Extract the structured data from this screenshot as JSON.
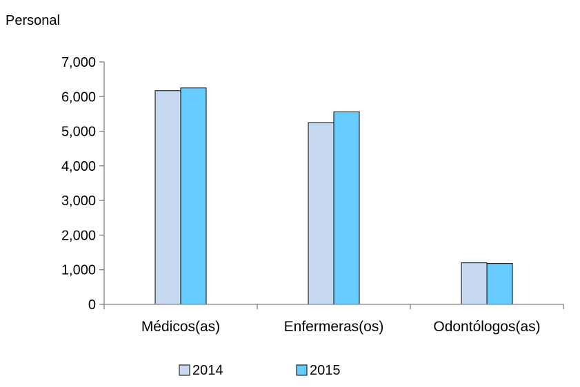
{
  "chart_data": {
    "type": "bar",
    "title": "",
    "ylabel": "Personal",
    "xlabel": "",
    "ylim": [
      0,
      7000
    ],
    "yticks": [
      0,
      1000,
      2000,
      3000,
      4000,
      5000,
      6000,
      7000
    ],
    "ytick_labels": [
      "0",
      "1,000",
      "2,000",
      "3,000",
      "4,000",
      "5,000",
      "6,000",
      "7,000"
    ],
    "grid": false,
    "legend_position": "bottom",
    "categories": [
      "Médicos(as)",
      "Enfermeras(os)",
      "Odontólogos(as)"
    ],
    "series": [
      {
        "name": "2014",
        "color": "#C6D9F1",
        "values": [
          6170,
          5250,
          1200
        ]
      },
      {
        "name": "2015",
        "color": "#66CCFF",
        "values": [
          6250,
          5560,
          1180
        ]
      }
    ]
  }
}
